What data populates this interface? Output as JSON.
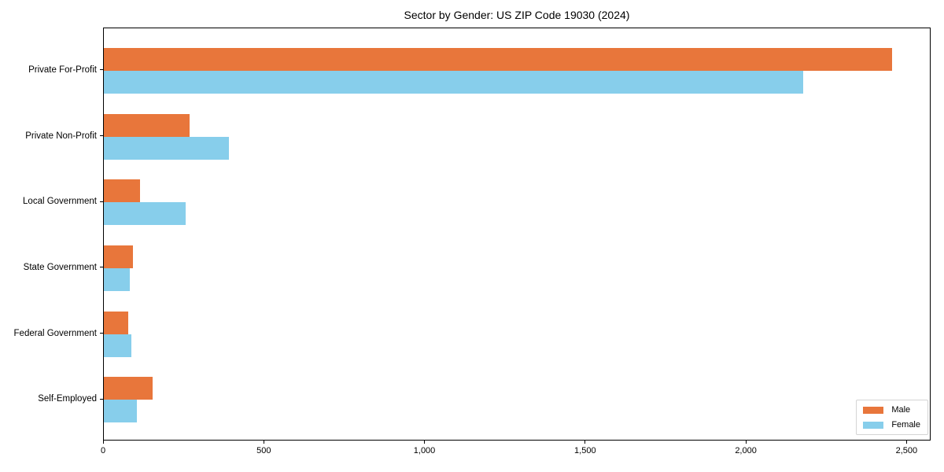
{
  "chart_data": {
    "type": "bar",
    "orientation": "horizontal",
    "title": "Sector by Gender: US ZIP Code 19030 (2024)",
    "categories": [
      "Private For-Profit",
      "Private Non-Profit",
      "Local Government",
      "State Government",
      "Federal Government",
      "Self-Employed"
    ],
    "series": [
      {
        "name": "Male",
        "color": "#e8763b",
        "values": [
          2458,
          268,
          113,
          91,
          76,
          153
        ]
      },
      {
        "name": "Female",
        "color": "#87ceeb",
        "values": [
          2180,
          390,
          254,
          80,
          86,
          104
        ]
      }
    ],
    "xlabel": "",
    "ylabel": "",
    "xlim": [
      0,
      2575
    ],
    "xticks": [
      0,
      500,
      1000,
      1500,
      2000,
      2500
    ],
    "xtick_labels": [
      "0",
      "500",
      "1,000",
      "1,500",
      "2,000",
      "2,500"
    ],
    "legend": {
      "position": "lower right"
    },
    "grid": false,
    "axis_color": "#000000",
    "background_color": "#ffffff"
  }
}
